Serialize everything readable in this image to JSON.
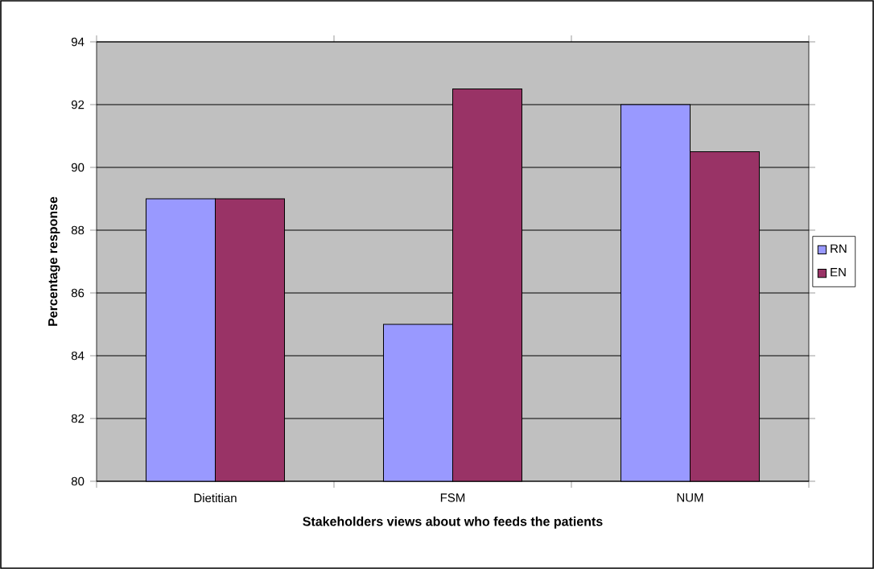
{
  "chart_data": {
    "type": "bar",
    "xlabel": "Stakeholders views about who feeds the patients",
    "ylabel": "Percentage response",
    "categories": [
      "Dietitian",
      "FSM",
      "NUM"
    ],
    "series": [
      {
        "name": "RN",
        "color": "#9999ff",
        "values": [
          89,
          85,
          92
        ]
      },
      {
        "name": "EN",
        "color": "#993366",
        "values": [
          89,
          92.5,
          90.5
        ]
      }
    ],
    "ylim": [
      80,
      94
    ],
    "yticks": [
      80,
      82,
      84,
      86,
      88,
      90,
      92,
      94
    ],
    "grid": "y",
    "legend": "right"
  }
}
